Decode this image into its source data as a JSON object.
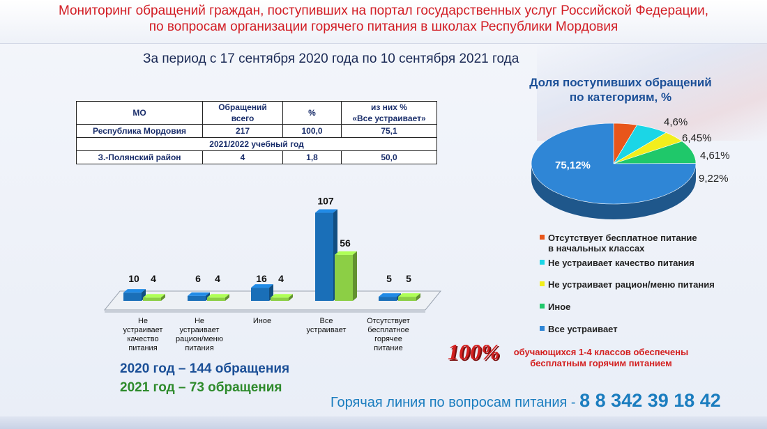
{
  "header": {
    "title_line1": "Мониторинг обращений граждан, поступивших на портал государственных услуг Российской Федерации,",
    "title_line2": "по вопросам организации горячего питания в школах Республики Мордовия"
  },
  "period": "За период с 17 сентября 2020 года по 10 сентября 2021 года",
  "table": {
    "headers": [
      "МО",
      "Обращений всего",
      "%",
      "из них % «Все устраивает»"
    ],
    "header_lines": {
      "total_1": "Обращений",
      "total_2": "всего",
      "ok_1": "из них %",
      "ok_2": "«Все устраивает»"
    },
    "rows": [
      {
        "mo": "Республика Мордовия",
        "total": "217",
        "pct": "100,0",
        "ok": "75,1"
      },
      {
        "section": "2021/2022 учебный год"
      },
      {
        "mo": "З.-Полянский район",
        "total": "4",
        "pct": "1,8",
        "ok": "50,0"
      }
    ]
  },
  "chart_data": [
    {
      "type": "bar",
      "categories": [
        "Не устраивает качество питания",
        "Не устраивает рацион/меню питания",
        "Иное",
        "Все устраивает",
        "Отсутствует бесплатное горячее питание"
      ],
      "category_lines": [
        [
          "Не",
          "устраивает",
          "качество",
          "питания"
        ],
        [
          "Не",
          "устраивает",
          "рацион/меню",
          "питания"
        ],
        [
          "Иное"
        ],
        [
          "Все",
          "устраивает"
        ],
        [
          "Отсутствует",
          "бесплатное",
          "горячее",
          "питание"
        ]
      ],
      "series": [
        {
          "values": [
            10,
            6,
            16,
            107,
            5
          ],
          "color": "#1a6fb8"
        },
        {
          "values": [
            4,
            4,
            4,
            56,
            5
          ],
          "color": "#8ccf45"
        }
      ],
      "ylim": [
        0,
        110
      ]
    },
    {
      "type": "pie",
      "title": "Доля поступивших обращений по категориям, %",
      "title_line1": "Доля поступивших обращений",
      "title_line2": "по категориям, %",
      "slices": [
        {
          "label": "Отсутствует бесплатное питание в начальных классах",
          "value": 4.6,
          "display": "4,6%",
          "color": "#e8561b"
        },
        {
          "label": "Не устраивает качество питания",
          "value": 6.45,
          "display": "6,45%",
          "color": "#1bd6e6"
        },
        {
          "label": "Не устраивает рацион/меню питания",
          "value": 4.61,
          "display": "4,61%",
          "color": "#f2ee1c"
        },
        {
          "label": "Иное",
          "value": 9.22,
          "display": "9,22%",
          "color": "#1fc86a"
        },
        {
          "label": "Все устраивает",
          "value": 75.12,
          "display": "75,12%",
          "color": "#2f86d6"
        }
      ]
    }
  ],
  "totals": {
    "y2020": "2020 год – 144 обращения",
    "y2021": "2021 год – 73 обращения"
  },
  "legend": {
    "item1_line1": "Отсутствует бесплатное питание",
    "item1_line2": "в начальных классах",
    "item2": "Не устраивает качество питания",
    "item3": "Не устраивает рацион/меню питания",
    "item4": "Иное",
    "item5": "Все устраивает"
  },
  "highlight": {
    "percent": "100%",
    "line1": "обучающихся 1-4  классов обеспечены",
    "line2": "бесплатным горячим питанием"
  },
  "hotline": {
    "label": "Горячая линия по вопросам питания - ",
    "number": "8 8 342 39 18 42"
  }
}
